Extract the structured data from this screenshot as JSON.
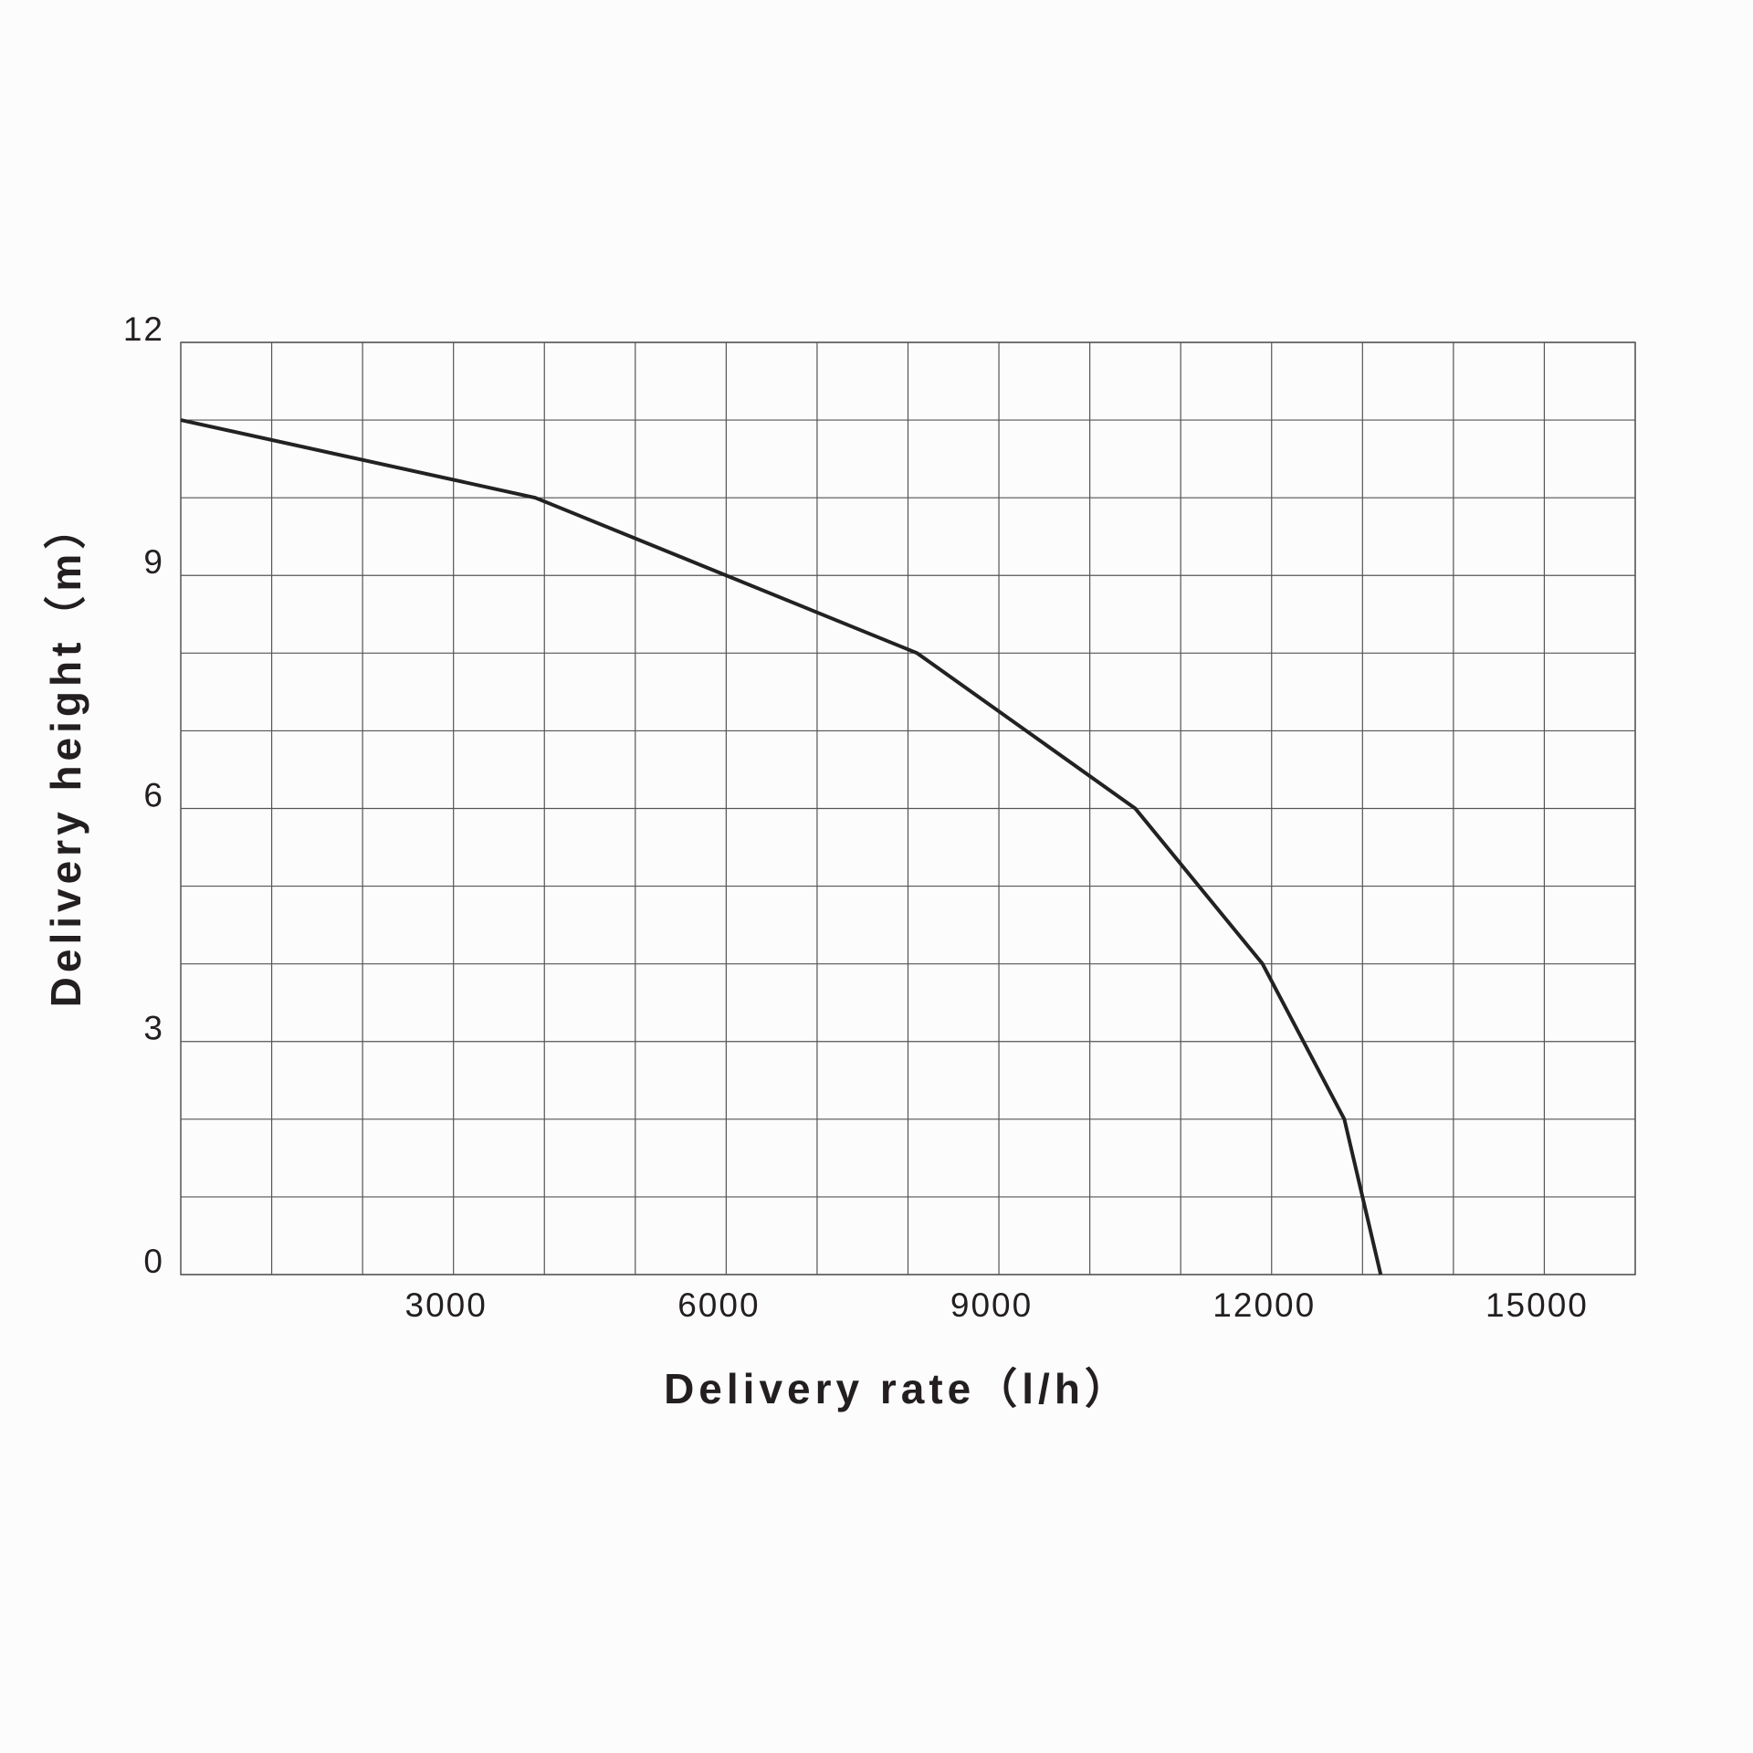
{
  "chart_data": {
    "type": "line",
    "x_label": "Delivery rate（l/h）",
    "y_label": "Delivery height（m）",
    "series": [
      {
        "color": "#222222",
        "x": [
          0,
          3900,
          8100,
          10500,
          11900,
          12800,
          13200
        ],
        "values": [
          11,
          10,
          8,
          6,
          4,
          2,
          0
        ]
      }
    ],
    "xlim": [
      0,
      16000
    ],
    "xticks": [
      3000,
      6000,
      9000,
      12000,
      15000
    ],
    "ylim": [
      0,
      12
    ],
    "yticks": [
      0,
      3,
      6,
      9,
      12
    ],
    "x_minor_grid": [
      1000,
      2000,
      4000,
      5000,
      7000,
      8000,
      10000,
      11000,
      13000,
      14000,
      16000
    ],
    "y_minor_grid": [
      1,
      2,
      4,
      5,
      7,
      8,
      10,
      11
    ],
    "grid": true
  }
}
